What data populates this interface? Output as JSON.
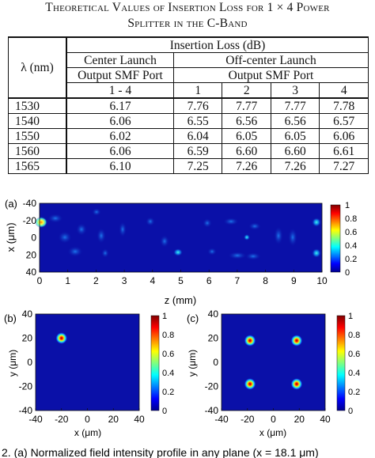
{
  "caption": {
    "line1": "Theoretical Values of Insertion Loss for 1 × 4 Power",
    "line2": "Splitter in the C-Band"
  },
  "table": {
    "header_insertion_loss": "Insertion Loss (dB)",
    "header_lambda": "λ (nm)",
    "header_center": "Center Launch",
    "header_offcenter": "Off-center Launch",
    "header_output_center": "Output SMF Port",
    "header_output_off": "Output SMF Port",
    "port_center": "1 - 4",
    "ports_off": [
      "1",
      "2",
      "3",
      "4"
    ],
    "rows": [
      {
        "lambda": "1530",
        "center": "6.17",
        "p1": "7.76",
        "p2": "7.77",
        "p3": "7.77",
        "p4": "7.78"
      },
      {
        "lambda": "1540",
        "center": "6.06",
        "p1": "6.55",
        "p2": "6.56",
        "p3": "6.56",
        "p4": "6.57"
      },
      {
        "lambda": "1550",
        "center": "6.02",
        "p1": "6.04",
        "p2": "6.05",
        "p3": "6.05",
        "p4": "6.06"
      },
      {
        "lambda": "1560",
        "center": "6.06",
        "p1": "6.59",
        "p2": "6.60",
        "p3": "6.60",
        "p4": "6.61"
      },
      {
        "lambda": "1565",
        "center": "6.10",
        "p1": "7.25",
        "p2": "7.26",
        "p3": "7.26",
        "p4": "7.27"
      }
    ]
  },
  "figure": {
    "panel_a": {
      "label": "(a)",
      "xlabel": "z (mm)",
      "ylabel": "x (μm)",
      "xticks": [
        "0",
        "1",
        "2",
        "3",
        "4",
        "5",
        "6",
        "7",
        "8",
        "9",
        "10"
      ],
      "yticks": [
        "-40",
        "-20",
        "0",
        "20",
        "40"
      ],
      "colorbar_ticks": [
        "1",
        "0.8",
        "0.6",
        "0.4",
        "0.2",
        "0"
      ]
    },
    "panel_b": {
      "label": "(b)",
      "xlabel": "x (μm)",
      "ylabel": "y (μm)",
      "xticks": [
        "-40",
        "-20",
        "0",
        "20",
        "40"
      ],
      "yticks": [
        "40",
        "20",
        "0",
        "-20",
        "-40"
      ],
      "colorbar_ticks": [
        "1",
        "0.8",
        "0.6",
        "0.4",
        "0.2",
        "0"
      ],
      "spots": [
        {
          "x": -20,
          "y": 20
        }
      ]
    },
    "panel_c": {
      "label": "(c)",
      "xlabel": "x (μm)",
      "ylabel": "y (μm)",
      "xticks": [
        "-40",
        "-20",
        "0",
        "20",
        "40"
      ],
      "yticks": [
        "40",
        "20",
        "0",
        "-20",
        "-40"
      ],
      "colorbar_ticks": [
        "1",
        "0.8",
        "0.6",
        "0.4",
        "0.2",
        "0"
      ],
      "spots": [
        {
          "x": -18,
          "y": 18
        },
        {
          "x": 18,
          "y": 18
        },
        {
          "x": -18,
          "y": -18
        },
        {
          "x": 18,
          "y": -18
        }
      ]
    },
    "bottom_caption": "2.    (a)  Normalized field intensity profile in any plane (x = 18.1 μm)"
  },
  "colors": {
    "field_bg": "#0a10a8",
    "text": "#111111"
  }
}
